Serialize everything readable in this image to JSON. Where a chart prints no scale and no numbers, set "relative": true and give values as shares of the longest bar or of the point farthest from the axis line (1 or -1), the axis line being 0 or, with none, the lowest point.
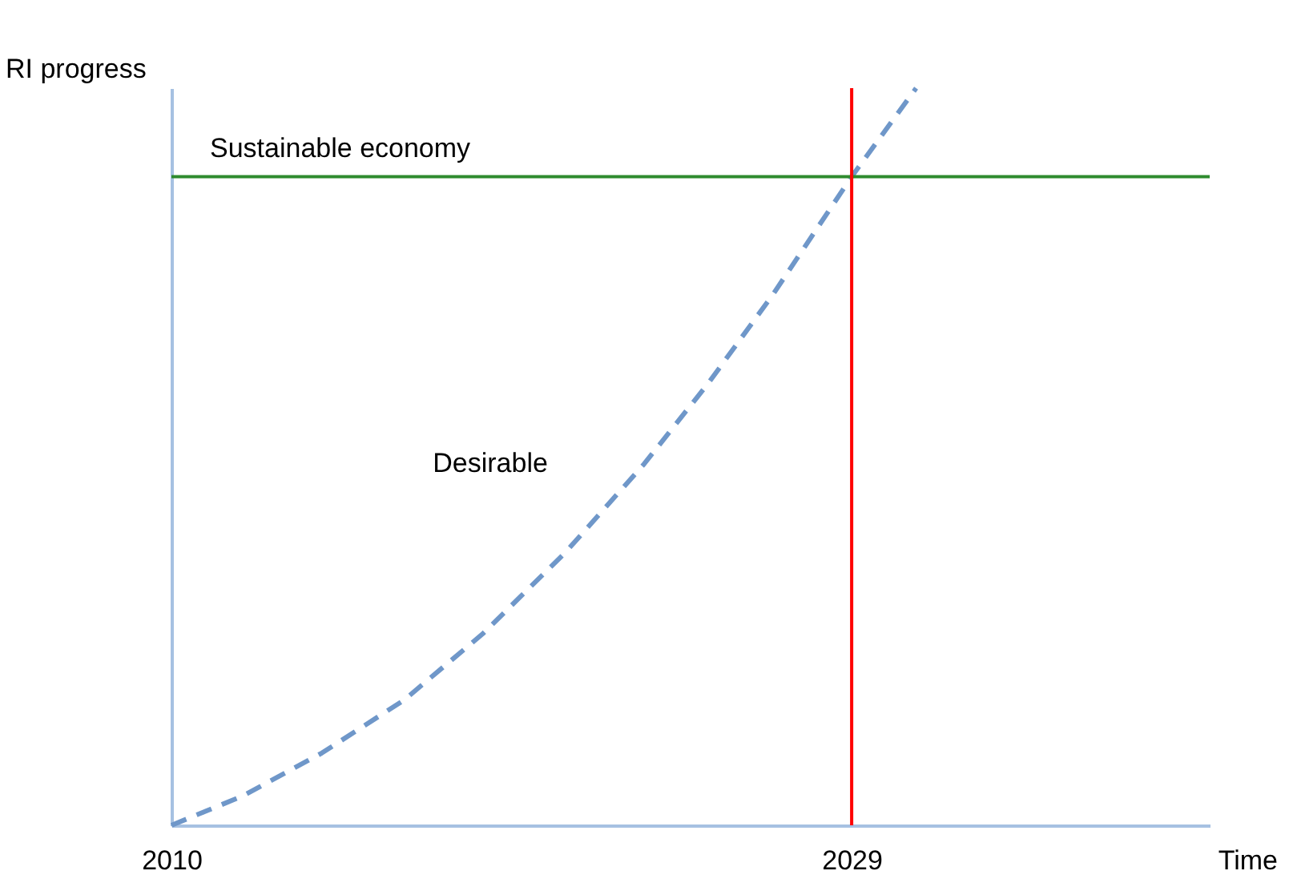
{
  "chart_data": {
    "type": "line",
    "relative": true,
    "xlabel": "Time",
    "ylabel": "RI progress",
    "xlim": [
      2010,
      2039
    ],
    "xticks": [
      2010,
      2029
    ],
    "grid": false,
    "line_style": "dashed",
    "marker": "none",
    "series": [
      {
        "name": "Desirable",
        "color": "#6f97c9",
        "x": [
          2010,
          2012,
          2014.2,
          2016.5,
          2018.7,
          2021,
          2023.2,
          2025,
          2026.8,
          2029,
          2030.8
        ],
        "values": [
          0,
          0.04,
          0.098,
          0.17,
          0.26,
          0.37,
          0.49,
          0.6,
          0.72,
          0.88,
          1
        ]
      }
    ],
    "ref_lines": [
      {
        "axis": "y",
        "value": 0.88,
        "label": "Sustainable economy",
        "color": "#2e8b2e"
      },
      {
        "axis": "x",
        "value": 2029,
        "color": "#ff0000"
      }
    ]
  }
}
